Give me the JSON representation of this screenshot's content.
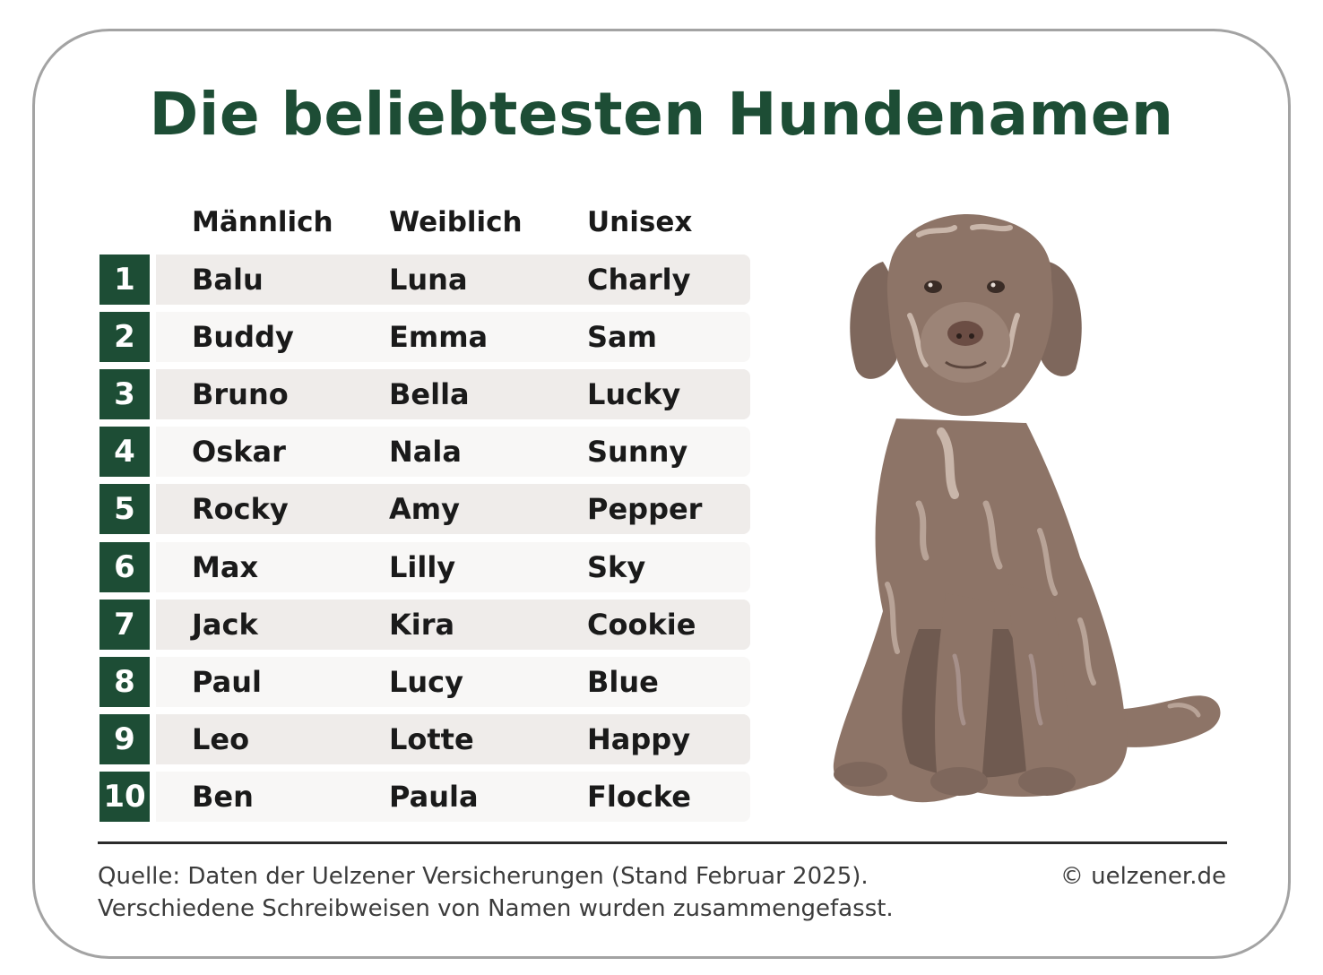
{
  "title": "Die beliebtesten Hundenamen",
  "columns": [
    "Männlich",
    "Weiblich",
    "Unisex"
  ],
  "rows": [
    {
      "rank": "1",
      "male": "Balu",
      "female": "Luna",
      "unisex": "Charly"
    },
    {
      "rank": "2",
      "male": "Buddy",
      "female": "Emma",
      "unisex": "Sam"
    },
    {
      "rank": "3",
      "male": "Bruno",
      "female": "Bella",
      "unisex": "Lucky"
    },
    {
      "rank": "4",
      "male": "Oskar",
      "female": "Nala",
      "unisex": "Sunny"
    },
    {
      "rank": "5",
      "male": "Rocky",
      "female": "Amy",
      "unisex": "Pepper"
    },
    {
      "rank": "6",
      "male": "Max",
      "female": "Lilly",
      "unisex": "Sky"
    },
    {
      "rank": "7",
      "male": "Jack",
      "female": "Kira",
      "unisex": "Cookie"
    },
    {
      "rank": "8",
      "male": "Paul",
      "female": "Lucy",
      "unisex": "Blue"
    },
    {
      "rank": "9",
      "male": "Leo",
      "female": "Lotte",
      "unisex": "Happy"
    },
    {
      "rank": "10",
      "male": "Ben",
      "female": "Paula",
      "unisex": "Flocke"
    }
  ],
  "footer": {
    "source_line1": "Quelle: Daten der Uelzener Versicherungen (Stand Februar 2025).",
    "source_line2": "Verschiedene Schreibweisen von Namen wurden zusammengefasst.",
    "copyright": "© uelzener.de"
  },
  "illustration": "sitting-brown-curly-dog",
  "colors": {
    "accent": "#1d4d35",
    "row_odd": "#efecea",
    "row_even": "#f8f7f6",
    "dog_fur": "#8d7467"
  }
}
